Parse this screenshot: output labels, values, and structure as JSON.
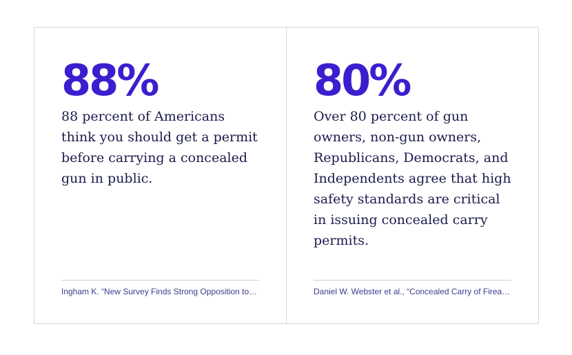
{
  "stats": [
    {
      "value": "88%",
      "description": "88 percent of Americans think you should get a permit before carrying a concealed gun in public.",
      "source": "Ingham K. “New Survey Finds Strong Opposition to…"
    },
    {
      "value": "80%",
      "description": "Over 80 percent of gun owners, non-gun owners, Republicans, Democrats, and Independents agree that high safety standards are critical in issuing concealed carry permits.",
      "source": "Daniel W. Webster et al., “Concealed Carry of Firea…"
    }
  ],
  "colors": {
    "accent": "#3a1fcf",
    "body_text": "#1b1b4d",
    "source_text": "#3c3c8c",
    "border": "#d6d6d6"
  }
}
